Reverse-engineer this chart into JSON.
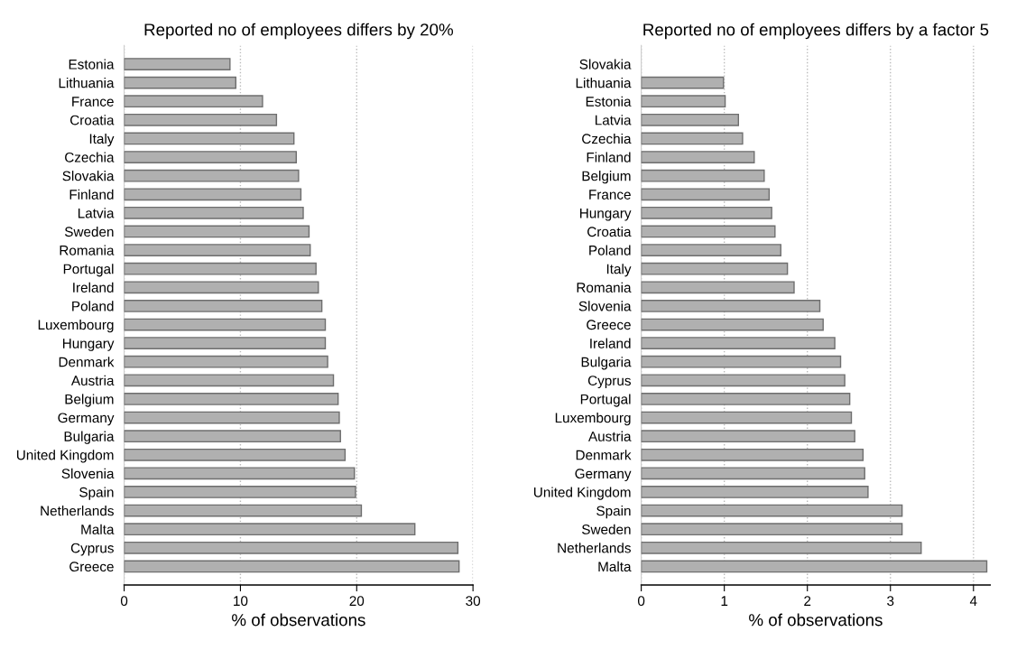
{
  "chart_data": [
    {
      "type": "bar",
      "orientation": "horizontal",
      "title": "Reported no of employees differs by 20%",
      "xlabel": "% of observations",
      "categories": [
        "Estonia",
        "Lithuania",
        "France",
        "Croatia",
        "Italy",
        "Czechia",
        "Slovakia",
        "Finland",
        "Latvia",
        "Sweden",
        "Romania",
        "Portugal",
        "Ireland",
        "Poland",
        "Luxembourg",
        "Hungary",
        "Denmark",
        "Austria",
        "Belgium",
        "Germany",
        "Bulgaria",
        "United Kingdom",
        "Slovenia",
        "Spain",
        "Netherlands",
        "Malta",
        "Cyprus",
        "Greece"
      ],
      "values": [
        9.1,
        9.6,
        11.9,
        13.1,
        14.6,
        14.8,
        15.0,
        15.2,
        15.4,
        15.9,
        16.0,
        16.5,
        16.7,
        17.0,
        17.3,
        17.3,
        17.5,
        18.0,
        18.4,
        18.5,
        18.6,
        19.0,
        19.8,
        19.9,
        20.4,
        25.0,
        28.7,
        28.8
      ],
      "color": "#b0b0b0",
      "xlim": [
        0,
        30
      ],
      "xticks": [
        0,
        10,
        20,
        30
      ],
      "grid": "x"
    },
    {
      "type": "bar",
      "orientation": "horizontal",
      "title": "Reported no of employees differs by a factor 5",
      "xlabel": "% of observations",
      "categories": [
        "Slovakia",
        "Lithuania",
        "Estonia",
        "Latvia",
        "Czechia",
        "Finland",
        "Belgium",
        "France",
        "Hungary",
        "Croatia",
        "Poland",
        "Italy",
        "Romania",
        "Slovenia",
        "Greece",
        "Ireland",
        "Bulgaria",
        "Cyprus",
        "Portugal",
        "Luxembourg",
        "Austria",
        "Denmark",
        "Germany",
        "United Kingdom",
        "Spain",
        "Sweden",
        "Netherlands",
        "Malta"
      ],
      "values": [
        0,
        0.99,
        1.01,
        1.17,
        1.22,
        1.36,
        1.48,
        1.54,
        1.57,
        1.61,
        1.68,
        1.76,
        1.84,
        2.15,
        2.19,
        2.33,
        2.4,
        2.45,
        2.51,
        2.53,
        2.57,
        2.67,
        2.69,
        2.73,
        3.14,
        3.14,
        3.37,
        4.16
      ],
      "color": "#b0b0b0",
      "xlim": [
        0,
        4.2
      ],
      "xticks": [
        0,
        1,
        2,
        3,
        4
      ],
      "grid": "x"
    }
  ]
}
